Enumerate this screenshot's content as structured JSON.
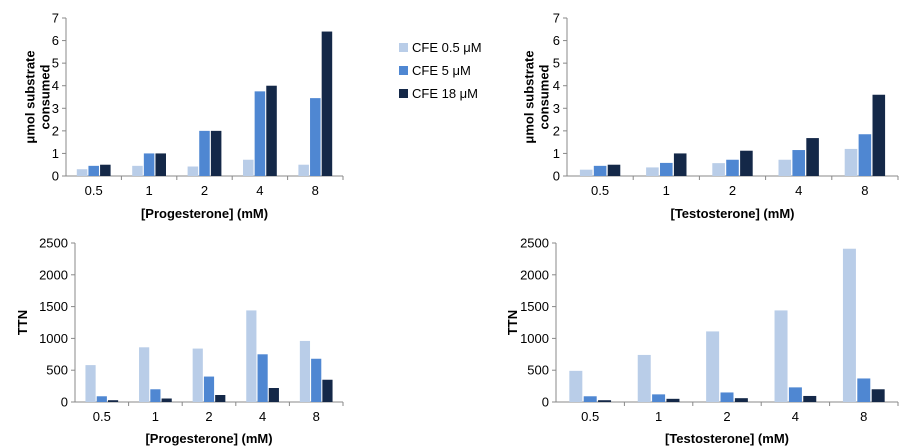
{
  "legend": [
    {
      "label": "CFE 0.5 μM",
      "color": "#b9cde8"
    },
    {
      "label": "CFE 5 μM",
      "color": "#4f87d2"
    },
    {
      "label": "CFE 18 μM",
      "color": "#142848"
    }
  ],
  "chart_data": [
    {
      "type": "bar",
      "categories": [
        "0.5",
        "1",
        "2",
        "4",
        "8"
      ],
      "ylabel": [
        "μmol substrate",
        "consumed"
      ],
      "xlabel": "[Progesterone] (mM)",
      "ylim": [
        0,
        7
      ],
      "yticks": [
        "0",
        "1",
        "2",
        "3",
        "4",
        "5",
        "6",
        "7"
      ],
      "series": [
        {
          "name": "CFE 0.5 μM",
          "values": [
            0.3,
            0.45,
            0.42,
            0.72,
            0.5
          ]
        },
        {
          "name": "CFE 5 μM",
          "values": [
            0.45,
            1.0,
            2.0,
            3.75,
            3.45
          ]
        },
        {
          "name": "CFE 18 μM",
          "values": [
            0.5,
            1.0,
            2.0,
            4.0,
            6.4
          ]
        }
      ]
    },
    {
      "type": "bar",
      "categories": [
        "0.5",
        "1",
        "2",
        "4",
        "8"
      ],
      "ylabel": [
        "μmol substrate",
        "consumed"
      ],
      "xlabel": "[Testosterone] (mM)",
      "ylim": [
        0,
        7
      ],
      "yticks": [
        "0",
        "1",
        "2",
        "3",
        "4",
        "5",
        "6",
        "7"
      ],
      "series": [
        {
          "name": "CFE 0.5 μM",
          "values": [
            0.28,
            0.38,
            0.57,
            0.72,
            1.2
          ]
        },
        {
          "name": "CFE 5 μM",
          "values": [
            0.45,
            0.58,
            0.72,
            1.15,
            1.85
          ]
        },
        {
          "name": "CFE 18 μM",
          "values": [
            0.5,
            1.0,
            1.12,
            1.68,
            3.6
          ]
        }
      ]
    },
    {
      "type": "bar",
      "categories": [
        "0.5",
        "1",
        "2",
        "4",
        "8"
      ],
      "ylabel": [
        "TTN"
      ],
      "xlabel": "[Progesterone] (mM)",
      "ylim": [
        0,
        2500
      ],
      "yticks": [
        "0",
        "500",
        "1000",
        "1500",
        "2000",
        "2500"
      ],
      "series": [
        {
          "name": "CFE 0.5 μM",
          "values": [
            580,
            860,
            840,
            1440,
            960
          ]
        },
        {
          "name": "CFE 5 μM",
          "values": [
            90,
            200,
            400,
            750,
            680
          ]
        },
        {
          "name": "CFE 18 μM",
          "values": [
            28,
            55,
            110,
            220,
            350
          ]
        }
      ]
    },
    {
      "type": "bar",
      "categories": [
        "0.5",
        "1",
        "2",
        "4",
        "8"
      ],
      "ylabel": [
        "TTN"
      ],
      "xlabel": "[Testosterone] (mM)",
      "ylim": [
        0,
        2500
      ],
      "yticks": [
        "0",
        "500",
        "1000",
        "1500",
        "2000",
        "2500"
      ],
      "series": [
        {
          "name": "CFE 0.5 μM",
          "values": [
            490,
            740,
            1110,
            1440,
            2410
          ]
        },
        {
          "name": "CFE 5 μM",
          "values": [
            90,
            120,
            150,
            230,
            370
          ]
        },
        {
          "name": "CFE 18 μM",
          "values": [
            28,
            50,
            60,
            95,
            200
          ]
        }
      ]
    }
  ]
}
